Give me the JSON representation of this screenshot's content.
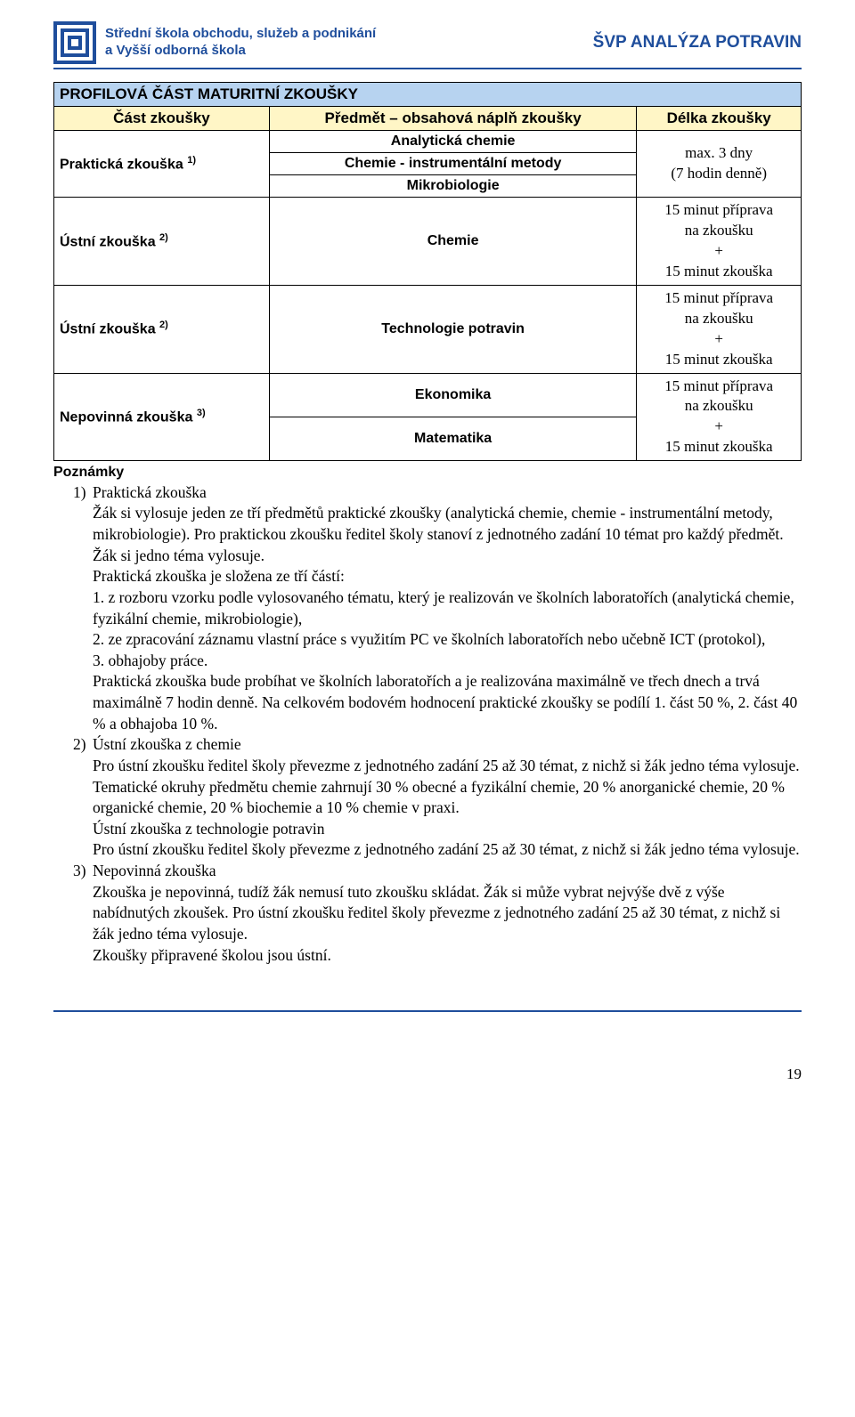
{
  "colors": {
    "brand": "#1f4e9c",
    "table_title_bg": "#b7d3f0",
    "table_head_bg": "#fff6c6",
    "border": "#000000",
    "page_bg": "#ffffff"
  },
  "header": {
    "school_line1": "Střední škola obchodu, služeb a podnikání",
    "school_line2": "a Vyšší odborná škola",
    "right_title": "ŠVP ANALÝZA POTRAVIN"
  },
  "table": {
    "title": "PROFILOVÁ ČÁST MATURITNÍ ZKOUŠKY",
    "head": {
      "c1": "Část zkoušky",
      "c2": "Předmět – obsahová náplň zkoušky",
      "c3": "Délka zkoušky"
    },
    "rows": {
      "r1_left": "Praktická zkouška ",
      "r1_left_sup": "1)",
      "r1_mid1": "Analytická chemie",
      "r1_mid2": "Chemie - instrumentální metody",
      "r1_mid3": "Mikrobiologie",
      "r1_right": "max. 3 dny\n(7 hodin denně)",
      "r2_left": "Ústní zkouška ",
      "r2_left_sup": "2)",
      "r2_mid": "Chemie",
      "r2_right": "15 minut příprava\nna zkoušku\n+\n15 minut zkouška",
      "r3_left": "Ústní zkouška ",
      "r3_left_sup": "2)",
      "r3_mid": "Technologie potravin",
      "r3_right": "15 minut příprava\nna zkoušku\n+\n15 minut zkouška",
      "r4_left": "Nepovinná zkouška ",
      "r4_left_sup": "3)",
      "r4_mid1": "Ekonomika",
      "r4_mid2": "Matematika",
      "r4_right": "15 minut příprava\nna zkoušku\n+\n15 minut zkouška"
    }
  },
  "notes_title": "Poznámky",
  "notes": [
    {
      "num": "1)",
      "lead": "Praktická zkouška",
      "body": "Žák si vylosuje jeden ze tří předmětů praktické zkoušky (analytická chemie, chemie - instrumentální metody, mikrobiologie). Pro praktickou zkoušku ředitel školy stanoví z jednotného zadání 10 témat pro každý předmět. Žák si jedno téma vylosuje.\nPraktická zkouška je složena ze tří částí:\n1. z rozboru vzorku podle vylosovaného tématu, který je realizován ve školních laboratořích (analytická chemie, fyzikální chemie, mikrobiologie),\n2. ze zpracování záznamu vlastní práce s využitím PC ve školních laboratořích nebo učebně ICT (protokol),\n3. obhajoby práce.\nPraktická zkouška bude probíhat ve školních laboratořích a je realizována maximálně ve třech dnech a trvá maximálně 7 hodin denně. Na celkovém bodovém hodnocení praktické zkoušky se podílí 1. část 50 %, 2. část 40 % a obhajoba 10 %."
    },
    {
      "num": "2)",
      "lead": "Ústní zkouška z chemie",
      "body": "Pro ústní zkoušku ředitel školy převezme z jednotného zadání 25 až 30 témat, z nichž si žák jedno téma vylosuje. Tematické okruhy předmětu chemie zahrnují 30 % obecné a fyzikální chemie, 20 % anorganické chemie, 20 % organické chemie, 20 % biochemie a 10 % chemie v praxi.\n Ústní zkouška z technologie potravin\nPro ústní zkoušku ředitel školy převezme z jednotného zadání 25 až 30 témat, z nichž si žák jedno téma vylosuje."
    },
    {
      "num": "3)",
      "lead": "Nepovinná zkouška",
      "body": "Zkouška je nepovinná, tudíž žák nemusí tuto zkoušku skládat. Žák si může vybrat nejvýše dvě z výše nabídnutých zkoušek. Pro ústní zkoušku ředitel školy převezme z jednotného zadání 25 až 30 témat, z nichž si žák jedno téma vylosuje.\nZkoušky připravené školou jsou ústní."
    }
  ],
  "page_number": "19"
}
